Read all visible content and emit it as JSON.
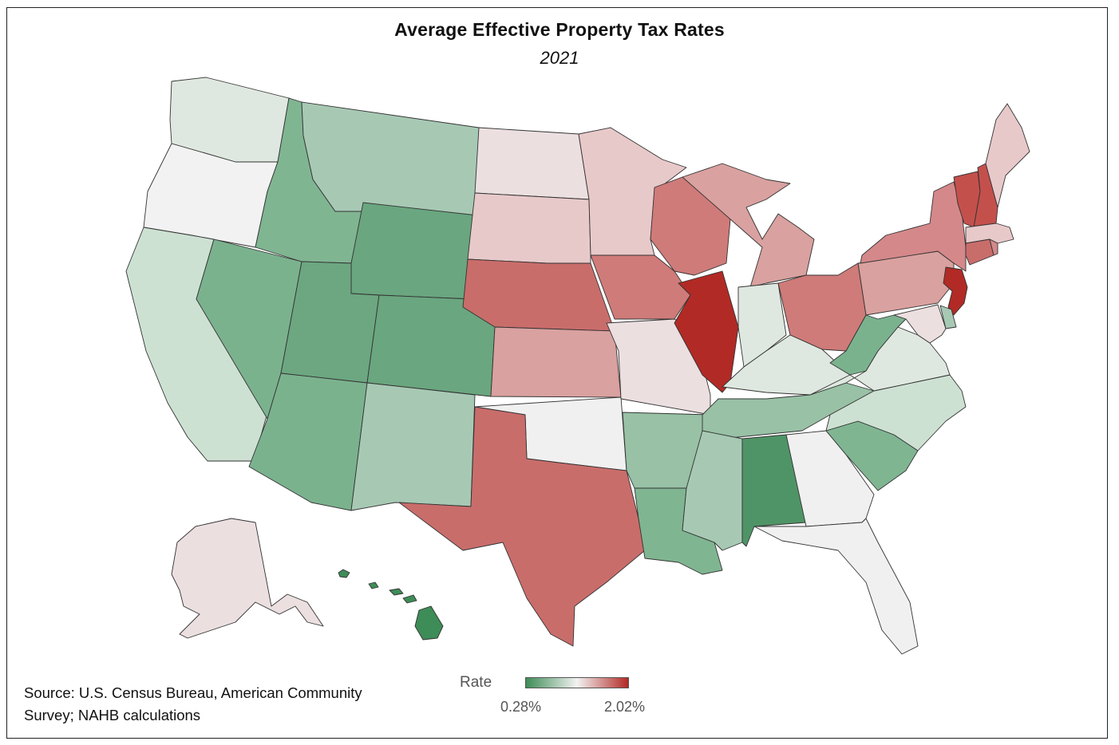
{
  "title": "Average Effective Property Tax Rates",
  "subtitle": "2021",
  "source": {
    "line1": "Source: U.S. Census Bureau, American Community",
    "line2": "Survey; NAHB calculations"
  },
  "legend": {
    "label": "Rate",
    "min_label": "0.28%",
    "max_label": "2.02%",
    "min_color": "#3e8c57",
    "mid_color": "#f2f2f2",
    "max_color": "#b22a25"
  },
  "states": [
    {
      "id": "WA",
      "color": "#dfe8e0"
    },
    {
      "id": "OR",
      "color": "#f2f2f2"
    },
    {
      "id": "CA",
      "color": "#cde1d2"
    },
    {
      "id": "ID",
      "color": "#80b592"
    },
    {
      "id": "NV",
      "color": "#7bb28e"
    },
    {
      "id": "MT",
      "color": "#a7c9b4"
    },
    {
      "id": "WY",
      "color": "#6aa67f"
    },
    {
      "id": "UT",
      "color": "#6ca781"
    },
    {
      "id": "AZ",
      "color": "#7bb28e"
    },
    {
      "id": "CO",
      "color": "#6aa67f"
    },
    {
      "id": "NM",
      "color": "#a7c9b4"
    },
    {
      "id": "ND",
      "color": "#ecdfe0"
    },
    {
      "id": "SD",
      "color": "#e8c9ca"
    },
    {
      "id": "NE",
      "color": "#c96d6b"
    },
    {
      "id": "KS",
      "color": "#d9a19f"
    },
    {
      "id": "OK",
      "color": "#f1f0f0"
    },
    {
      "id": "TX",
      "color": "#c96d6b"
    },
    {
      "id": "MN",
      "color": "#e8c9ca"
    },
    {
      "id": "IA",
      "color": "#cf7b79"
    },
    {
      "id": "MO",
      "color": "#ecdfe0"
    },
    {
      "id": "AR",
      "color": "#98c1a5"
    },
    {
      "id": "LA",
      "color": "#80b592"
    },
    {
      "id": "WI",
      "color": "#cf7b79"
    },
    {
      "id": "IL",
      "color": "#b22a25"
    },
    {
      "id": "MI",
      "color": "#d9a19f"
    },
    {
      "id": "IN",
      "color": "#dfe8e0"
    },
    {
      "id": "OH",
      "color": "#cf7b79"
    },
    {
      "id": "KY",
      "color": "#dfe8e0"
    },
    {
      "id": "TN",
      "color": "#98c1a5"
    },
    {
      "id": "MS",
      "color": "#a7c9b4"
    },
    {
      "id": "AL",
      "color": "#4f9466"
    },
    {
      "id": "GA",
      "color": "#f1f0f0"
    },
    {
      "id": "FL",
      "color": "#f1f0f0"
    },
    {
      "id": "SC",
      "color": "#80b592"
    },
    {
      "id": "NC",
      "color": "#cde1d2"
    },
    {
      "id": "VA",
      "color": "#dfe8e0"
    },
    {
      "id": "WV",
      "color": "#7bb28e"
    },
    {
      "id": "PA",
      "color": "#d9a19f"
    },
    {
      "id": "NY",
      "color": "#d4888a"
    },
    {
      "id": "VT",
      "color": "#c4504c"
    },
    {
      "id": "NH",
      "color": "#c4504c"
    },
    {
      "id": "ME",
      "color": "#e8c9ca"
    },
    {
      "id": "MA",
      "color": "#e8c9ca"
    },
    {
      "id": "CT",
      "color": "#c96d6b"
    },
    {
      "id": "RI",
      "color": "#d4888a"
    },
    {
      "id": "NJ",
      "color": "#b22a25"
    },
    {
      "id": "DE",
      "color": "#a7c9b4"
    },
    {
      "id": "MD",
      "color": "#ecdfe0"
    },
    {
      "id": "AK",
      "color": "#ecdfe0"
    },
    {
      "id": "HI",
      "color": "#3e8c57"
    }
  ]
}
